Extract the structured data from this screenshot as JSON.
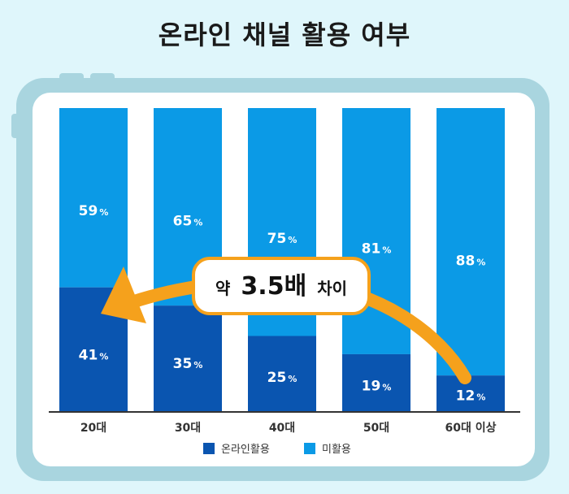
{
  "title": "온라인 채널 활용 여부",
  "colors": {
    "online": "#0a55b0",
    "not_used": "#0b9ae6",
    "arrow": "#f5a11c",
    "frame": "#a9d5df",
    "background": "#dff6fb"
  },
  "chart_data": {
    "type": "bar",
    "stacked": true,
    "categories": [
      "20대",
      "30대",
      "40대",
      "50대",
      "60대 이상"
    ],
    "series": [
      {
        "name": "온라인활용",
        "values": [
          41,
          35,
          25,
          19,
          12
        ]
      },
      {
        "name": "미활용",
        "values": [
          59,
          65,
          75,
          81,
          88
        ]
      }
    ],
    "unit": "%",
    "ylim": [
      0,
      100
    ],
    "legend": [
      "온라인활용",
      "미활용"
    ],
    "legend_position": "bottom",
    "annotation": {
      "prefix": "약",
      "value": "3.5배",
      "suffix": "차이"
    }
  }
}
